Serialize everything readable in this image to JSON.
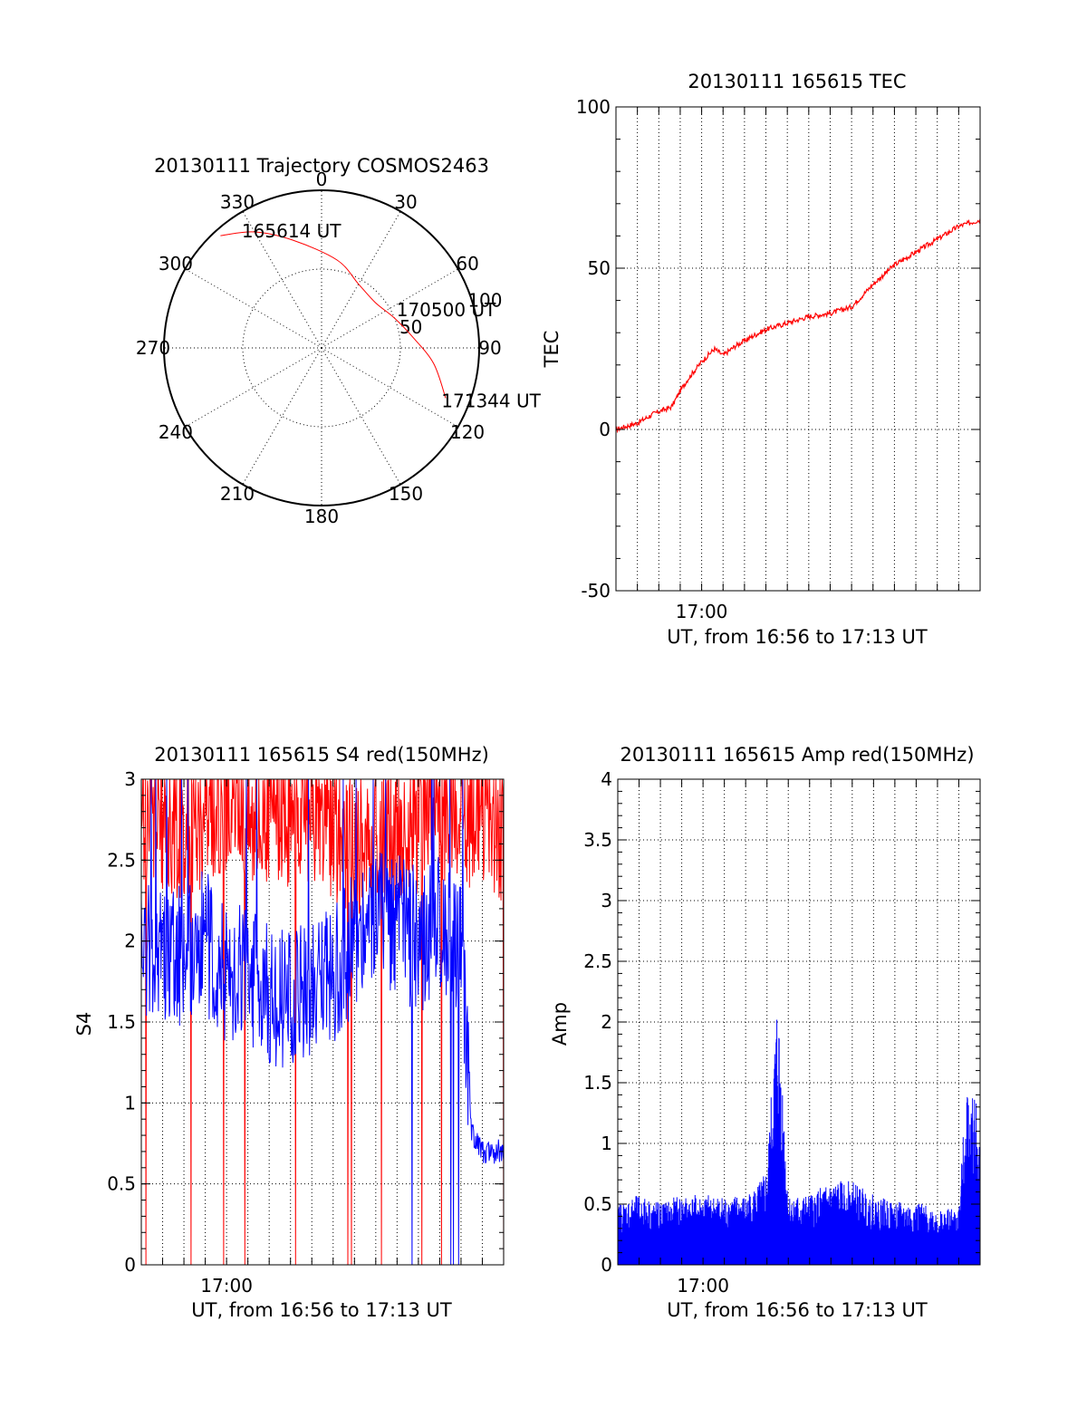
{
  "chart_data": [
    {
      "type": "polar",
      "title": "20130111 Trajectory COSMOS2463",
      "azimuth_labels": [
        "0",
        "30",
        "60",
        "90",
        "120",
        "150",
        "180",
        "210",
        "240",
        "270",
        "300",
        "330"
      ],
      "elevation_ring_labels": [
        "50",
        "100"
      ],
      "elevation_rings": [
        50,
        100
      ],
      "trajectory": {
        "color": "#ff0000",
        "points": [
          {
            "az": 318,
            "el": 2
          },
          {
            "az": 330,
            "el": 12
          },
          {
            "az": 345,
            "el": 25
          },
          {
            "az": 10,
            "el": 38
          },
          {
            "az": 30,
            "el": 47
          },
          {
            "az": 50,
            "el": 49
          },
          {
            "az": 68,
            "el": 44
          },
          {
            "az": 84,
            "el": 36
          },
          {
            "az": 98,
            "el": 24
          },
          {
            "az": 112,
            "el": 12
          }
        ]
      },
      "annotations": [
        {
          "text": "165614 UT",
          "az": 329,
          "el": 10
        },
        {
          "text": "170500 UT",
          "az": 65,
          "el": 36
        },
        {
          "text": "171344 UT",
          "az": 112,
          "el": 9
        }
      ]
    },
    {
      "type": "line",
      "title": "20130111 165615 TEC",
      "xlabel": "UT, from 16:56 to 17:13 UT",
      "ylabel": "TEC",
      "xlim": [
        56,
        73
      ],
      "ylim": [
        -50,
        100
      ],
      "yticks": [
        "-50",
        "0",
        "50",
        "100"
      ],
      "xtick_label": "17:00",
      "xtick_at": 60,
      "series": [
        {
          "color": "#ff0000",
          "x": [
            56.0,
            57.0,
            57.8,
            58.6,
            59.0,
            59.4,
            60.0,
            60.6,
            61.0,
            61.6,
            62.4,
            63.0,
            64.0,
            65.0,
            66.0,
            67.0,
            68.0,
            69.0,
            70.0,
            71.0,
            72.0,
            73.0
          ],
          "y": [
            0,
            2,
            5,
            7,
            12,
            16,
            21,
            25,
            23,
            26,
            29,
            31,
            33,
            35,
            36,
            38,
            45,
            51,
            55,
            59,
            63,
            65
          ]
        }
      ]
    },
    {
      "type": "line",
      "title": "20130111 165615 S4 red(150MHz)",
      "xlabel": "UT, from 16:56 to 17:13 UT",
      "ylabel": "S4",
      "xlim": [
        56,
        73
      ],
      "ylim": [
        0,
        3
      ],
      "yticks": [
        "0",
        "0.5",
        "1",
        "1.5",
        "2",
        "2.5",
        "3"
      ],
      "xtick_label": "17:00",
      "xtick_at": 60,
      "series": [
        {
          "color": "#ff0000",
          "x": [
            56,
            58,
            60,
            62,
            64,
            66,
            68,
            70,
            72,
            73
          ],
          "y": [
            2.6,
            2.5,
            2.7,
            2.6,
            2.6,
            2.4,
            2.5,
            2.6,
            2.6,
            2.5
          ]
        },
        {
          "color": "#0000ff",
          "x": [
            56,
            57,
            58,
            59,
            60,
            61,
            62,
            63,
            64,
            65,
            66,
            67,
            68,
            69,
            70,
            71,
            71.5,
            72,
            72.5,
            73
          ],
          "y": [
            2.0,
            1.9,
            1.9,
            2.0,
            1.8,
            1.8,
            1.7,
            1.6,
            1.7,
            1.8,
            2.0,
            2.2,
            2.1,
            2.0,
            2.1,
            2.0,
            0.8,
            0.7,
            0.7,
            0.7
          ]
        }
      ]
    },
    {
      "type": "line",
      "title": "20130111 165615 Amp red(150MHz)",
      "xlabel": "UT, from 16:56 to 17:13 UT",
      "ylabel": "Amp",
      "xlim": [
        56,
        73
      ],
      "ylim": [
        0,
        4
      ],
      "yticks": [
        "0",
        "0.5",
        "1",
        "1.5",
        "2",
        "2.5",
        "3",
        "3.5",
        "4"
      ],
      "xtick_label": "17:00",
      "xtick_at": 60,
      "series": [
        {
          "color": "#0000ff",
          "x": [
            56,
            57,
            58,
            59,
            60,
            61,
            62,
            62.7,
            63,
            63.5,
            64,
            65,
            66,
            67,
            68,
            69,
            70,
            71,
            72,
            72.4,
            72.8,
            73
          ],
          "y": [
            0.45,
            0.5,
            0.45,
            0.5,
            0.5,
            0.5,
            0.5,
            0.6,
            0.7,
            2.0,
            0.5,
            0.5,
            0.6,
            0.6,
            0.5,
            0.45,
            0.45,
            0.4,
            0.4,
            1.4,
            1.2,
            0.9
          ]
        }
      ]
    }
  ]
}
